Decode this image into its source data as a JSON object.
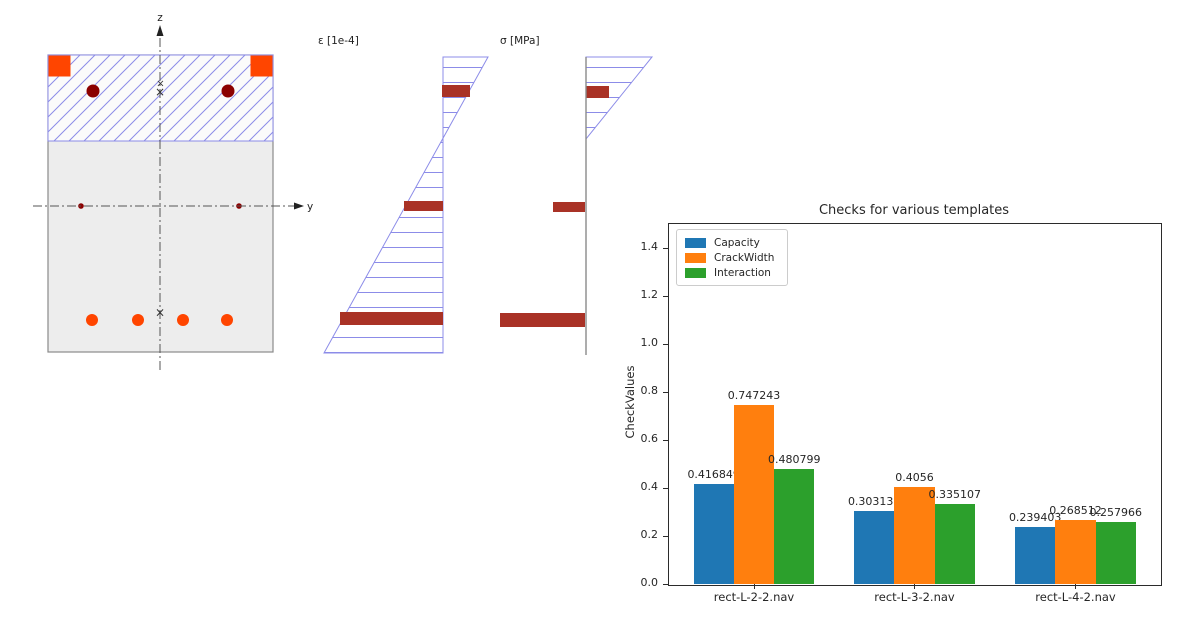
{
  "figure": {
    "z_axis_label": "z",
    "y_axis_label": "y",
    "strain_label": "ε [1e-4]",
    "stress_label": "σ [MPa]",
    "centroid_marker": "×",
    "colors": {
      "concrete_fill": "#ededed",
      "section_outline": "#8a8a8a",
      "hatch_blue": "#8c8ce8",
      "rebar_orange": "#ff4500",
      "rebar_dark_red": "#8b0000",
      "diagram_bar_red": "#a93226",
      "axis_dash_line": "#555555"
    }
  },
  "chart_data": {
    "type": "bar",
    "title": "Checks for various templates",
    "xlabel": "",
    "ylabel": "CheckValues",
    "categories": [
      "rect-L-2-2.nav",
      "rect-L-3-2.nav",
      "rect-L-4-2.nav"
    ],
    "series": [
      {
        "name": "Capacity",
        "color": "#1f77b4",
        "values": [
          0.416849,
          0.303138,
          0.239403
        ]
      },
      {
        "name": "CrackWidth",
        "color": "#ff7f0e",
        "values": [
          0.747243,
          0.4056,
          0.268512
        ]
      },
      {
        "name": "Interaction",
        "color": "#2ca02c",
        "values": [
          0.480799,
          0.335107,
          0.257966
        ]
      }
    ],
    "yticks": [
      0.0,
      0.2,
      0.4,
      0.6,
      0.8,
      1.0,
      1.2,
      1.4
    ],
    "ylim": [
      0,
      1.504
    ],
    "grid": false,
    "legend_position": "upper left",
    "value_labels_shown": true
  }
}
